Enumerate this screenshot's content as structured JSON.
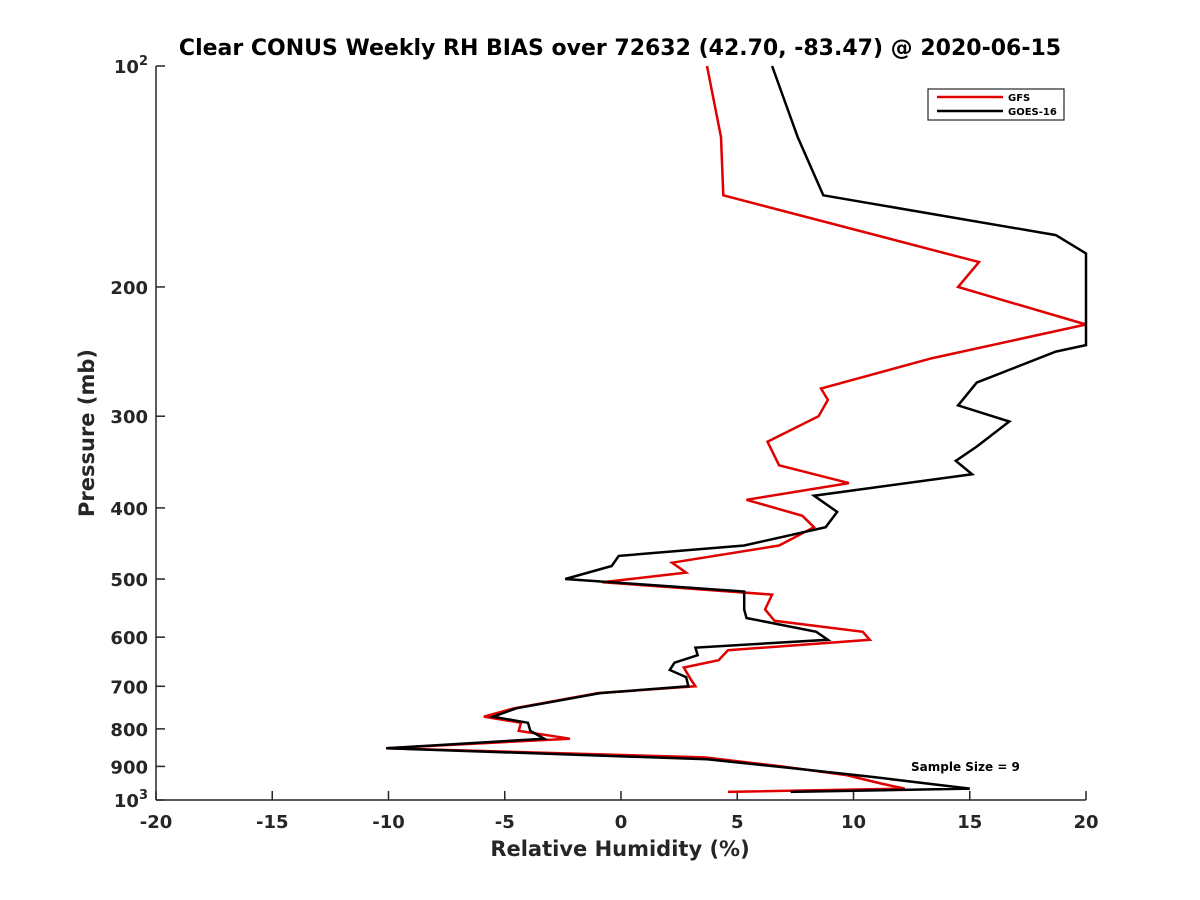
{
  "chart_data": {
    "type": "line",
    "title": "Clear CONUS Weekly RH BIAS over 72632 (42.70, -83.47) @ 2020-06-15",
    "xlabel": "Relative Humidity (%)",
    "ylabel": "Pressure (mb)",
    "xlim": [
      -20,
      20
    ],
    "ylim": [
      100,
      1000
    ],
    "y_scale": "log",
    "y_reversed": true,
    "grid": false,
    "legend_position": "top-right",
    "x_ticks": [
      "-20",
      "-15",
      "-10",
      "-5",
      "0",
      "5",
      "10",
      "15",
      "20"
    ],
    "y_ticks": [
      {
        "base": "10",
        "exp": "2"
      },
      {
        "base": "200",
        "exp": ""
      },
      {
        "base": "300",
        "exp": ""
      },
      {
        "base": "400",
        "exp": ""
      },
      {
        "base": "500",
        "exp": ""
      },
      {
        "base": "600",
        "exp": ""
      },
      {
        "base": "700",
        "exp": ""
      },
      {
        "base": "800",
        "exp": ""
      },
      {
        "base": "900",
        "exp": ""
      },
      {
        "base": "10",
        "exp": "3"
      }
    ],
    "annotation": "Sample Size = 9",
    "series": [
      {
        "name": "GFS",
        "color": "#e00000",
        "points": [
          {
            "x": 3.7,
            "p": 100
          },
          {
            "x": 4.3,
            "p": 125
          },
          {
            "x": 4.4,
            "p": 150
          },
          {
            "x": 15.4,
            "p": 185
          },
          {
            "x": 14.5,
            "p": 200
          },
          {
            "x": 20.0,
            "p": 225
          },
          {
            "x": 13.4,
            "p": 250
          },
          {
            "x": 8.6,
            "p": 275
          },
          {
            "x": 8.9,
            "p": 285
          },
          {
            "x": 8.5,
            "p": 300
          },
          {
            "x": 6.3,
            "p": 325
          },
          {
            "x": 6.8,
            "p": 350
          },
          {
            "x": 9.8,
            "p": 370
          },
          {
            "x": 5.4,
            "p": 390
          },
          {
            "x": 7.8,
            "p": 410
          },
          {
            "x": 8.3,
            "p": 425
          },
          {
            "x": 6.8,
            "p": 450
          },
          {
            "x": 2.2,
            "p": 475
          },
          {
            "x": 2.8,
            "p": 490
          },
          {
            "x": -0.8,
            "p": 505
          },
          {
            "x": 6.5,
            "p": 525
          },
          {
            "x": 6.2,
            "p": 550
          },
          {
            "x": 6.6,
            "p": 570
          },
          {
            "x": 10.4,
            "p": 590
          },
          {
            "x": 10.7,
            "p": 605
          },
          {
            "x": 4.6,
            "p": 625
          },
          {
            "x": 4.2,
            "p": 645
          },
          {
            "x": 2.7,
            "p": 660
          },
          {
            "x": 3.0,
            "p": 685
          },
          {
            "x": 3.2,
            "p": 700
          },
          {
            "x": -1.0,
            "p": 715
          },
          {
            "x": -4.6,
            "p": 750
          },
          {
            "x": -5.9,
            "p": 770
          },
          {
            "x": -4.3,
            "p": 785
          },
          {
            "x": -4.4,
            "p": 805
          },
          {
            "x": -2.2,
            "p": 825
          },
          {
            "x": -10.1,
            "p": 850
          },
          {
            "x": 3.6,
            "p": 875
          },
          {
            "x": 6.9,
            "p": 900
          },
          {
            "x": 9.7,
            "p": 925
          },
          {
            "x": 11.2,
            "p": 950
          },
          {
            "x": 12.2,
            "p": 965
          },
          {
            "x": 4.6,
            "p": 975
          }
        ]
      },
      {
        "name": "GOES-16",
        "color": "#000000",
        "points": [
          {
            "x": 6.5,
            "p": 100
          },
          {
            "x": 7.6,
            "p": 125
          },
          {
            "x": 8.7,
            "p": 150
          },
          {
            "x": 18.7,
            "p": 170
          },
          {
            "x": 20.0,
            "p": 180
          },
          {
            "x": 20.0,
            "p": 240
          },
          {
            "x": 18.7,
            "p": 245
          },
          {
            "x": 15.3,
            "p": 270
          },
          {
            "x": 14.5,
            "p": 290
          },
          {
            "x": 16.7,
            "p": 305
          },
          {
            "x": 15.3,
            "p": 330
          },
          {
            "x": 14.4,
            "p": 345
          },
          {
            "x": 15.1,
            "p": 360
          },
          {
            "x": 8.3,
            "p": 385
          },
          {
            "x": 9.3,
            "p": 405
          },
          {
            "x": 8.8,
            "p": 425
          },
          {
            "x": 5.3,
            "p": 450
          },
          {
            "x": -0.1,
            "p": 465
          },
          {
            "x": -0.4,
            "p": 480
          },
          {
            "x": -2.4,
            "p": 500
          },
          {
            "x": 5.3,
            "p": 520
          },
          {
            "x": 5.3,
            "p": 550
          },
          {
            "x": 5.4,
            "p": 565
          },
          {
            "x": 8.4,
            "p": 590
          },
          {
            "x": 8.9,
            "p": 605
          },
          {
            "x": 3.2,
            "p": 620
          },
          {
            "x": 3.3,
            "p": 635
          },
          {
            "x": 2.3,
            "p": 650
          },
          {
            "x": 2.1,
            "p": 665
          },
          {
            "x": 2.8,
            "p": 680
          },
          {
            "x": 2.9,
            "p": 700
          },
          {
            "x": -0.9,
            "p": 715
          },
          {
            "x": -4.5,
            "p": 750
          },
          {
            "x": -5.5,
            "p": 770
          },
          {
            "x": -4.0,
            "p": 785
          },
          {
            "x": -3.9,
            "p": 805
          },
          {
            "x": -3.3,
            "p": 825
          },
          {
            "x": -10.1,
            "p": 850
          },
          {
            "x": 3.7,
            "p": 880
          },
          {
            "x": 7.4,
            "p": 905
          },
          {
            "x": 10.8,
            "p": 930
          },
          {
            "x": 13.2,
            "p": 950
          },
          {
            "x": 15.0,
            "p": 965
          },
          {
            "x": 7.3,
            "p": 975
          }
        ]
      }
    ]
  }
}
